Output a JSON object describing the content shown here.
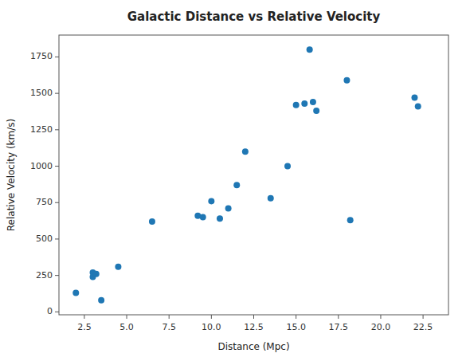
{
  "chart_data": {
    "type": "scatter",
    "title": "Galactic Distance vs Relative Velocity",
    "x_label": "Distance (Mpc)",
    "y_label": "Relative Velocity (km/s)",
    "x": [
      2.0,
      3.0,
      3.0,
      3.2,
      3.5,
      4.5,
      6.5,
      9.2,
      9.5,
      10.0,
      10.5,
      11.0,
      11.5,
      12.0,
      13.5,
      14.5,
      15.0,
      15.5,
      15.8,
      16.0,
      16.2,
      18.0,
      18.2,
      22.0,
      22.2
    ],
    "y": [
      130,
      240,
      270,
      260,
      80,
      310,
      620,
      660,
      650,
      760,
      640,
      710,
      870,
      1100,
      780,
      1000,
      1420,
      1430,
      1800,
      1440,
      1380,
      1590,
      630,
      1470,
      1410
    ],
    "color": "#1f77b4",
    "xlim": [
      1.0,
      24.0
    ],
    "ylim": [
      -20,
      1900
    ],
    "xticks": [
      2.5,
      {
        "value": 5.0,
        "label": "5.0"
      },
      7.5,
      {
        "value": 10.0,
        "label": "10.0"
      },
      12.5,
      {
        "value": 15.0,
        "label": "15.0"
      },
      17.5,
      {
        "value": 20.0,
        "label": "20.0"
      },
      22.5
    ],
    "yticks": [
      0,
      250,
      500,
      750,
      1000,
      1250,
      1500,
      1750
    ]
  }
}
